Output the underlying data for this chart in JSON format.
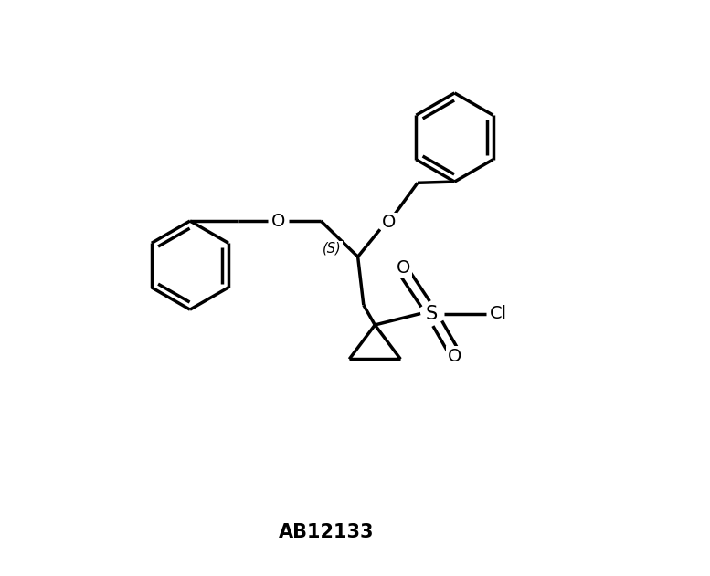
{
  "title": "AB12133",
  "title_fontsize": 15,
  "title_fontweight": "bold",
  "background_color": "#ffffff",
  "line_color": "#000000",
  "line_width": 2.5,
  "figsize": [
    7.77,
    6.31
  ],
  "dpi": 100,
  "xlim": [
    0,
    10
  ],
  "ylim": [
    0,
    10
  ]
}
